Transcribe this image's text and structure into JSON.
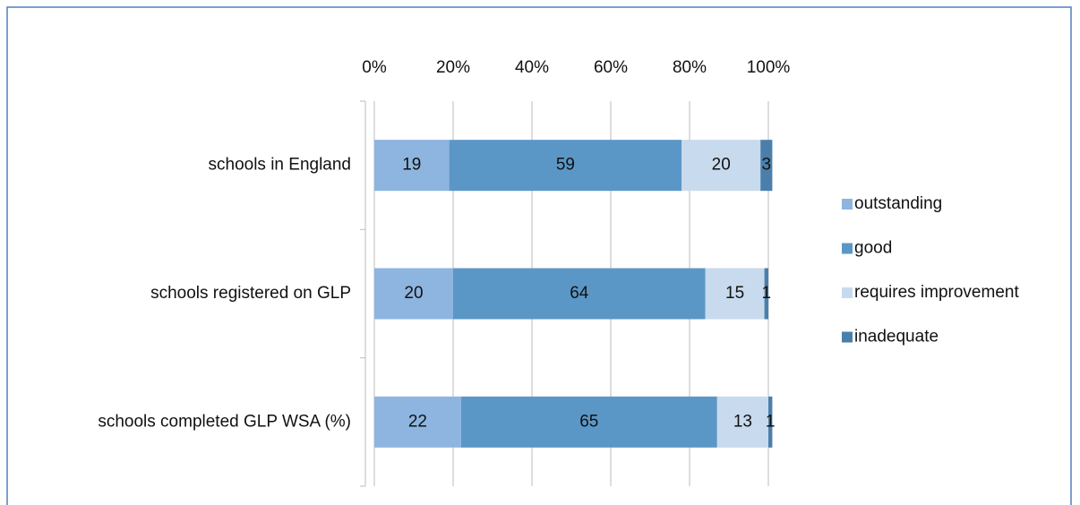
{
  "chart_data": {
    "type": "stacked-barh",
    "categories": [
      "schools in England",
      "schools registered on GLP",
      "schools completed GLP WSA (%)"
    ],
    "series": [
      {
        "name": "outstanding",
        "color": "#8db5df",
        "values": [
          19,
          20,
          22
        ]
      },
      {
        "name": "good",
        "color": "#5b97c6",
        "values": [
          59,
          64,
          65
        ]
      },
      {
        "name": "requires improvement",
        "color": "#c8daed",
        "values": [
          20,
          15,
          13
        ]
      },
      {
        "name": "inadequate",
        "color": "#4b7fab",
        "values": [
          3,
          1,
          1
        ]
      }
    ],
    "xlim": [
      0,
      100
    ],
    "xticks": [
      {
        "value": 0,
        "label": "0%"
      },
      {
        "value": 20,
        "label": "20%"
      },
      {
        "value": 40,
        "label": "40%"
      },
      {
        "value": 60,
        "label": "60%"
      },
      {
        "value": 80,
        "label": "80%"
      },
      {
        "value": 100,
        "label": "100%"
      }
    ],
    "grid": true,
    "legend": "right"
  }
}
